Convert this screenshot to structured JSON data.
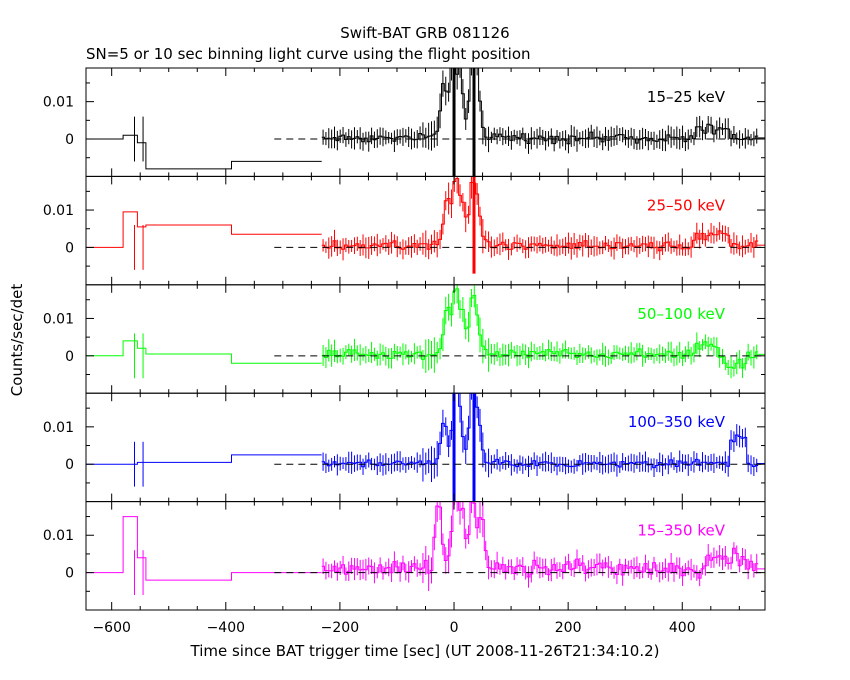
{
  "chart_data": {
    "type": "line",
    "title": "Swift-BAT GRB 081126",
    "subtitle": "SN=5 or 10 sec binning light curve using the flight position",
    "xlabel": "Time since BAT trigger time [sec] (UT 2008-11-26T21:34:10.2)",
    "ylabel": "Counts/sec/det",
    "xlim": [
      -645,
      545
    ],
    "ylim": [
      -0.01,
      0.019
    ],
    "x_ticks": [
      -600,
      -400,
      -200,
      0,
      200,
      400
    ],
    "x_tick_labels": [
      "−600",
      "−400",
      "−200",
      "0",
      "200",
      "400"
    ],
    "y_ticks": [
      0,
      0.01
    ],
    "y_tick_labels": [
      "0",
      "0.01"
    ],
    "zero_line": "dashed",
    "panels": [
      {
        "name": "15–25 keV",
        "color": "#000000",
        "pre": [
          [
            -645,
            0
          ],
          [
            -580,
            0.001
          ],
          [
            -555,
            -0.001
          ],
          [
            -540,
            -0.008
          ],
          [
            -390,
            -0.006
          ],
          [
            -232,
            -0.006
          ]
        ],
        "bursts": [
          [
            -20,
            0.014
          ],
          [
            -5,
            0.019
          ],
          [
            8,
            0.016
          ],
          [
            30,
            0.019
          ],
          [
            38,
            0.013
          ]
        ],
        "sigma": 0.0017,
        "post_bias": 0.0003,
        "end_bump": [
          [
            420,
            480,
            0.003
          ]
        ],
        "spikes": [
          [
            0,
            -0.01
          ],
          [
            35,
            -0.01
          ]
        ]
      },
      {
        "name": "25–50 keV",
        "color": "#ff0000",
        "pre": [
          [
            -645,
            0
          ],
          [
            -580,
            0.0095
          ],
          [
            -555,
            0.0055
          ],
          [
            -540,
            0.006
          ],
          [
            -390,
            0.0035
          ],
          [
            -232,
            0.003
          ]
        ],
        "bursts": [
          [
            -15,
            0.012
          ],
          [
            0,
            0.017
          ],
          [
            12,
            0.01
          ],
          [
            30,
            0.016
          ],
          [
            40,
            0.008
          ]
        ],
        "sigma": 0.0019,
        "post_bias": 0.0006,
        "end_bump": [
          [
            420,
            480,
            0.004
          ]
        ],
        "spikes": [
          [
            35,
            -0.007
          ]
        ]
      },
      {
        "name": "50–100 keV",
        "color": "#00ff00",
        "pre": [
          [
            -645,
            0
          ],
          [
            -580,
            0.004
          ],
          [
            -555,
            0.002
          ],
          [
            -540,
            0.0005
          ],
          [
            -390,
            -0.002
          ],
          [
            -232,
            -0.002
          ]
        ],
        "bursts": [
          [
            -15,
            0.012
          ],
          [
            0,
            0.016
          ],
          [
            12,
            0.009
          ],
          [
            30,
            0.014
          ],
          [
            40,
            0.006
          ]
        ],
        "sigma": 0.0019,
        "post_bias": 0.0004,
        "end_bump": [
          [
            420,
            460,
            0.003
          ],
          [
            470,
            510,
            -0.003
          ]
        ],
        "spikes": []
      },
      {
        "name": "100–350 keV",
        "color": "#0000ff",
        "pre": [
          [
            -645,
            0
          ],
          [
            -580,
            0
          ],
          [
            -555,
            0.0005
          ],
          [
            -540,
            0.0005
          ],
          [
            -390,
            0.0025
          ],
          [
            -232,
            0.0025
          ]
        ],
        "bursts": [
          [
            -20,
            0.01
          ],
          [
            0,
            0.019
          ],
          [
            8,
            0.008
          ],
          [
            30,
            0.019
          ],
          [
            40,
            0.01
          ]
        ],
        "sigma": 0.0013,
        "post_bias": 0.0002,
        "end_bump": [
          [
            480,
            510,
            0.008
          ]
        ],
        "spikes": [
          [
            0,
            -0.01
          ],
          [
            35,
            -0.01
          ]
        ]
      },
      {
        "name": "15–350 keV",
        "color": "#ff00ff",
        "pre": [
          [
            -645,
            0
          ],
          [
            -580,
            0.015
          ],
          [
            -555,
            0.004
          ],
          [
            -540,
            -0.002
          ],
          [
            -390,
            0
          ],
          [
            -232,
            0.0005
          ]
        ],
        "bursts": [
          [
            -30,
            0.019
          ],
          [
            0,
            0.019
          ],
          [
            12,
            0.012
          ],
          [
            30,
            0.019
          ],
          [
            45,
            0.014
          ]
        ],
        "sigma": 0.003,
        "post_bias": 0.001,
        "end_bump": [
          [
            440,
            510,
            0.004
          ]
        ],
        "spikes": []
      }
    ]
  }
}
